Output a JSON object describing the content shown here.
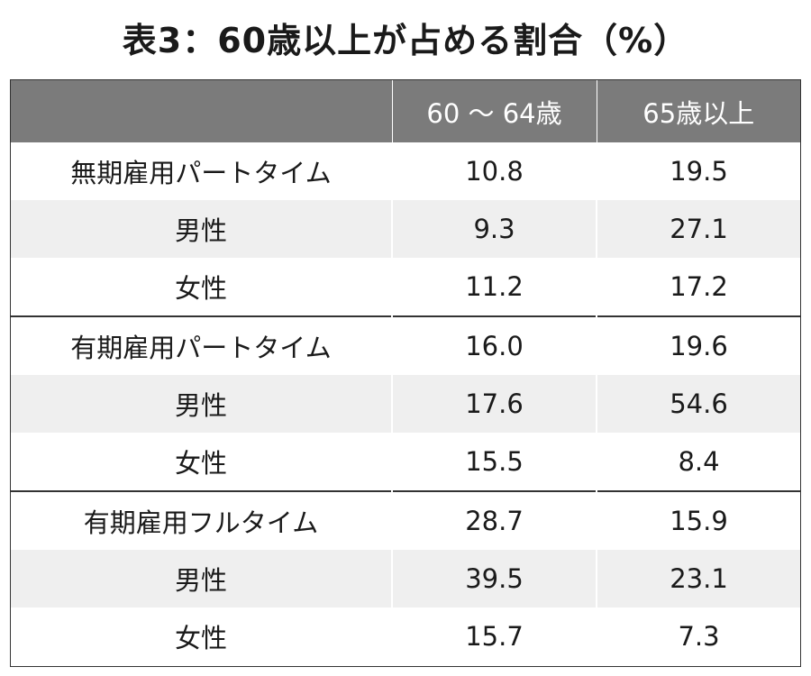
{
  "title": "表3：60歳以上が占める割合（%）",
  "table": {
    "headers": [
      "",
      "60 ～ 64歳",
      "65歳以上"
    ],
    "rows": [
      [
        "無期雇用パートタイム",
        "10.8",
        "19.5"
      ],
      [
        "男性",
        "9.3",
        "27.1"
      ],
      [
        "女性",
        "11.2",
        "17.2"
      ],
      [
        "有期雇用パートタイム",
        "16.0",
        "19.6"
      ],
      [
        "男性",
        "17.6",
        "54.6"
      ],
      [
        "女性",
        "15.5",
        "8.4"
      ],
      [
        "有期雇用フルタイム",
        "28.7",
        "15.9"
      ],
      [
        "男性",
        "39.5",
        "23.1"
      ],
      [
        "女性",
        "15.7",
        "7.3"
      ]
    ]
  },
  "colors": {
    "header_bg": "#7b7b7b",
    "header_text": "#ffffff",
    "row_shade": "#efefef",
    "group_divider": "#333333"
  }
}
